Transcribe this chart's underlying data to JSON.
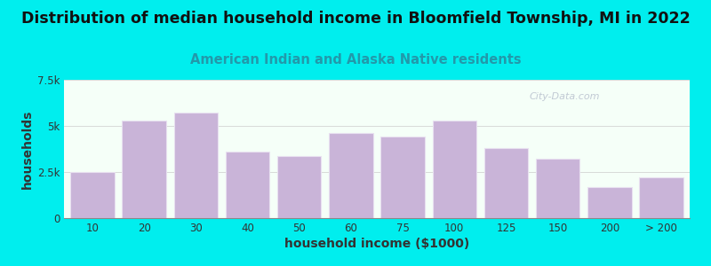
{
  "title": "Distribution of median household income in Bloomfield Township, MI in 2022",
  "subtitle": "American Indian and Alaska Native residents",
  "xlabel": "household income ($1000)",
  "ylabel": "households",
  "watermark": "City-Data.com",
  "background_outer": "#00EEEE",
  "background_inner": "#f5fff8",
  "bar_color": "#c9b4d8",
  "bar_edge_color": "#e8e0f0",
  "categories": [
    "10",
    "20",
    "30",
    "40",
    "50",
    "60",
    "75",
    "100",
    "125",
    "150",
    "200",
    "> 200"
  ],
  "values": [
    2500,
    5300,
    5700,
    3600,
    3350,
    4600,
    4400,
    5300,
    3800,
    3200,
    1700,
    2200
  ],
  "ylim": [
    0,
    7500
  ],
  "yticks": [
    0,
    2500,
    5000,
    7500
  ],
  "ytick_labels": [
    "0",
    "2.5k",
    "5k",
    "7.5k"
  ],
  "title_fontsize": 12.5,
  "subtitle_fontsize": 10.5,
  "axis_label_fontsize": 10,
  "tick_fontsize": 8.5
}
